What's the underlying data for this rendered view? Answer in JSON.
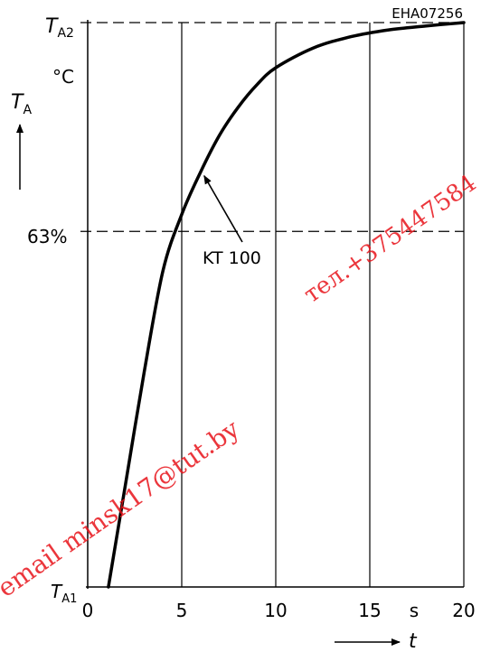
{
  "figure_code": "EHA07256",
  "watermark": {
    "email_text": "email   minsk17@tut.by",
    "phone_text": "тел.+375447584",
    "color": "#e8141b"
  },
  "chart_data": {
    "type": "line",
    "series": [
      {
        "name": "KT 100",
        "points": [
          [
            1.1,
            0
          ],
          [
            2,
            18
          ],
          [
            3,
            38
          ],
          [
            4,
            56
          ],
          [
            5,
            66
          ],
          [
            6,
            73.5
          ],
          [
            7,
            80
          ],
          [
            8,
            85
          ],
          [
            9,
            89
          ],
          [
            10,
            92
          ],
          [
            12,
            95.5
          ],
          [
            14,
            97.5
          ],
          [
            16,
            98.7
          ],
          [
            18,
            99.4
          ],
          [
            20,
            100
          ]
        ]
      }
    ],
    "x_ticks": [
      0,
      5,
      10,
      15,
      20
    ],
    "x_unit": "s",
    "x_axis_label": "t",
    "y_axis_label": "T",
    "y_axis_label_sub": "A",
    "y_unit": "°C",
    "y_top_label": "T",
    "y_top_label_sub": "A2",
    "y_bottom_label": "T",
    "y_bottom_label_sub": "A1",
    "y_mid_label": "63%",
    "y_mid_value": 63,
    "xlim": [
      0,
      20
    ],
    "ylim": [
      0,
      100
    ],
    "annotation": {
      "text": "KT 100",
      "points_to": [
        6,
        73.5
      ]
    },
    "gridlines": {
      "vertical": [
        5,
        10,
        15,
        20
      ],
      "horizontal_dashed": [
        63,
        100
      ]
    }
  }
}
